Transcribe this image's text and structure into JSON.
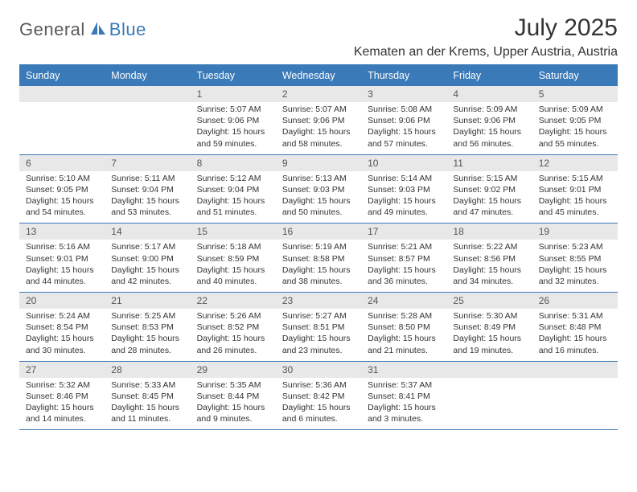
{
  "brand": {
    "part1": "General",
    "part2": "Blue"
  },
  "title": "July 2025",
  "location": "Kematen an der Krems, Upper Austria, Austria",
  "colors": {
    "accent": "#3a7ab8",
    "dow_bg": "#3a7ab8",
    "dow_fg": "#ffffff",
    "daynum_bg": "#e8e8e8",
    "text": "#333333",
    "logo_gray": "#5a5a5a"
  },
  "dow": [
    "Sunday",
    "Monday",
    "Tuesday",
    "Wednesday",
    "Thursday",
    "Friday",
    "Saturday"
  ],
  "weeks": [
    [
      {
        "n": "",
        "sr": "",
        "ss": "",
        "dl": ""
      },
      {
        "n": "",
        "sr": "",
        "ss": "",
        "dl": ""
      },
      {
        "n": "1",
        "sr": "Sunrise: 5:07 AM",
        "ss": "Sunset: 9:06 PM",
        "dl": "Daylight: 15 hours and 59 minutes."
      },
      {
        "n": "2",
        "sr": "Sunrise: 5:07 AM",
        "ss": "Sunset: 9:06 PM",
        "dl": "Daylight: 15 hours and 58 minutes."
      },
      {
        "n": "3",
        "sr": "Sunrise: 5:08 AM",
        "ss": "Sunset: 9:06 PM",
        "dl": "Daylight: 15 hours and 57 minutes."
      },
      {
        "n": "4",
        "sr": "Sunrise: 5:09 AM",
        "ss": "Sunset: 9:06 PM",
        "dl": "Daylight: 15 hours and 56 minutes."
      },
      {
        "n": "5",
        "sr": "Sunrise: 5:09 AM",
        "ss": "Sunset: 9:05 PM",
        "dl": "Daylight: 15 hours and 55 minutes."
      }
    ],
    [
      {
        "n": "6",
        "sr": "Sunrise: 5:10 AM",
        "ss": "Sunset: 9:05 PM",
        "dl": "Daylight: 15 hours and 54 minutes."
      },
      {
        "n": "7",
        "sr": "Sunrise: 5:11 AM",
        "ss": "Sunset: 9:04 PM",
        "dl": "Daylight: 15 hours and 53 minutes."
      },
      {
        "n": "8",
        "sr": "Sunrise: 5:12 AM",
        "ss": "Sunset: 9:04 PM",
        "dl": "Daylight: 15 hours and 51 minutes."
      },
      {
        "n": "9",
        "sr": "Sunrise: 5:13 AM",
        "ss": "Sunset: 9:03 PM",
        "dl": "Daylight: 15 hours and 50 minutes."
      },
      {
        "n": "10",
        "sr": "Sunrise: 5:14 AM",
        "ss": "Sunset: 9:03 PM",
        "dl": "Daylight: 15 hours and 49 minutes."
      },
      {
        "n": "11",
        "sr": "Sunrise: 5:15 AM",
        "ss": "Sunset: 9:02 PM",
        "dl": "Daylight: 15 hours and 47 minutes."
      },
      {
        "n": "12",
        "sr": "Sunrise: 5:15 AM",
        "ss": "Sunset: 9:01 PM",
        "dl": "Daylight: 15 hours and 45 minutes."
      }
    ],
    [
      {
        "n": "13",
        "sr": "Sunrise: 5:16 AM",
        "ss": "Sunset: 9:01 PM",
        "dl": "Daylight: 15 hours and 44 minutes."
      },
      {
        "n": "14",
        "sr": "Sunrise: 5:17 AM",
        "ss": "Sunset: 9:00 PM",
        "dl": "Daylight: 15 hours and 42 minutes."
      },
      {
        "n": "15",
        "sr": "Sunrise: 5:18 AM",
        "ss": "Sunset: 8:59 PM",
        "dl": "Daylight: 15 hours and 40 minutes."
      },
      {
        "n": "16",
        "sr": "Sunrise: 5:19 AM",
        "ss": "Sunset: 8:58 PM",
        "dl": "Daylight: 15 hours and 38 minutes."
      },
      {
        "n": "17",
        "sr": "Sunrise: 5:21 AM",
        "ss": "Sunset: 8:57 PM",
        "dl": "Daylight: 15 hours and 36 minutes."
      },
      {
        "n": "18",
        "sr": "Sunrise: 5:22 AM",
        "ss": "Sunset: 8:56 PM",
        "dl": "Daylight: 15 hours and 34 minutes."
      },
      {
        "n": "19",
        "sr": "Sunrise: 5:23 AM",
        "ss": "Sunset: 8:55 PM",
        "dl": "Daylight: 15 hours and 32 minutes."
      }
    ],
    [
      {
        "n": "20",
        "sr": "Sunrise: 5:24 AM",
        "ss": "Sunset: 8:54 PM",
        "dl": "Daylight: 15 hours and 30 minutes."
      },
      {
        "n": "21",
        "sr": "Sunrise: 5:25 AM",
        "ss": "Sunset: 8:53 PM",
        "dl": "Daylight: 15 hours and 28 minutes."
      },
      {
        "n": "22",
        "sr": "Sunrise: 5:26 AM",
        "ss": "Sunset: 8:52 PM",
        "dl": "Daylight: 15 hours and 26 minutes."
      },
      {
        "n": "23",
        "sr": "Sunrise: 5:27 AM",
        "ss": "Sunset: 8:51 PM",
        "dl": "Daylight: 15 hours and 23 minutes."
      },
      {
        "n": "24",
        "sr": "Sunrise: 5:28 AM",
        "ss": "Sunset: 8:50 PM",
        "dl": "Daylight: 15 hours and 21 minutes."
      },
      {
        "n": "25",
        "sr": "Sunrise: 5:30 AM",
        "ss": "Sunset: 8:49 PM",
        "dl": "Daylight: 15 hours and 19 minutes."
      },
      {
        "n": "26",
        "sr": "Sunrise: 5:31 AM",
        "ss": "Sunset: 8:48 PM",
        "dl": "Daylight: 15 hours and 16 minutes."
      }
    ],
    [
      {
        "n": "27",
        "sr": "Sunrise: 5:32 AM",
        "ss": "Sunset: 8:46 PM",
        "dl": "Daylight: 15 hours and 14 minutes."
      },
      {
        "n": "28",
        "sr": "Sunrise: 5:33 AM",
        "ss": "Sunset: 8:45 PM",
        "dl": "Daylight: 15 hours and 11 minutes."
      },
      {
        "n": "29",
        "sr": "Sunrise: 5:35 AM",
        "ss": "Sunset: 8:44 PM",
        "dl": "Daylight: 15 hours and 9 minutes."
      },
      {
        "n": "30",
        "sr": "Sunrise: 5:36 AM",
        "ss": "Sunset: 8:42 PM",
        "dl": "Daylight: 15 hours and 6 minutes."
      },
      {
        "n": "31",
        "sr": "Sunrise: 5:37 AM",
        "ss": "Sunset: 8:41 PM",
        "dl": "Daylight: 15 hours and 3 minutes."
      },
      {
        "n": "",
        "sr": "",
        "ss": "",
        "dl": ""
      },
      {
        "n": "",
        "sr": "",
        "ss": "",
        "dl": ""
      }
    ]
  ]
}
